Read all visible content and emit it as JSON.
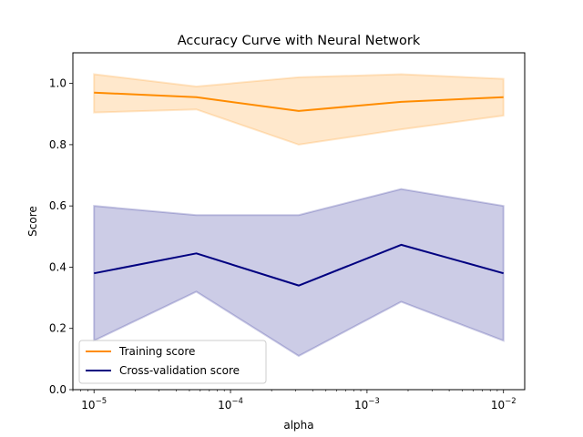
{
  "chart_data": {
    "type": "line",
    "title": "Accuracy Curve with Neural Network",
    "xlabel": "alpha",
    "ylabel": "Score",
    "x_scale": "log",
    "x": [
      1e-05,
      5.62e-05,
      0.000316,
      0.00178,
      0.01
    ],
    "xlim": [
      7e-06,
      0.0143
    ],
    "ylim": [
      0.0,
      1.1
    ],
    "x_ticks": [
      {
        "value": 1e-05,
        "base": "10",
        "exp": "−5"
      },
      {
        "value": 0.0001,
        "base": "10",
        "exp": "−4"
      },
      {
        "value": 0.001,
        "base": "10",
        "exp": "−3"
      },
      {
        "value": 0.01,
        "base": "10",
        "exp": "−2"
      }
    ],
    "y_ticks": [
      "0.0",
      "0.2",
      "0.4",
      "0.6",
      "0.8",
      "1.0"
    ],
    "series": [
      {
        "name": "Training score",
        "color": "#ff8c00",
        "values": [
          0.97,
          0.955,
          0.91,
          0.94,
          0.955
        ],
        "band_upper": [
          1.03,
          0.99,
          1.02,
          1.03,
          1.015
        ],
        "band_lower": [
          0.905,
          0.915,
          0.8,
          0.85,
          0.895
        ]
      },
      {
        "name": "Cross-validation score",
        "color": "#000080",
        "values": [
          0.38,
          0.445,
          0.34,
          0.473,
          0.38
        ],
        "band_upper": [
          0.6,
          0.57,
          0.57,
          0.655,
          0.6
        ],
        "band_lower": [
          0.16,
          0.32,
          0.11,
          0.287,
          0.16
        ]
      }
    ],
    "grid": false,
    "legend_position": "lower-left"
  }
}
